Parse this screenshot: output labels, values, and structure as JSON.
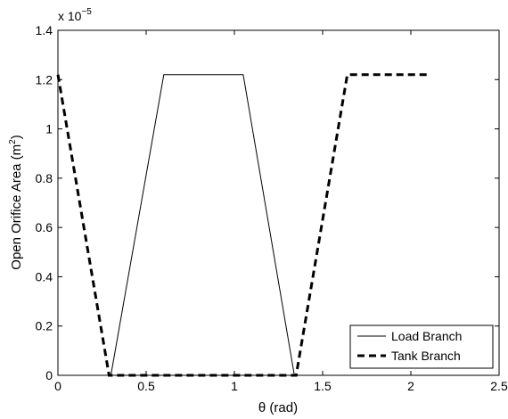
{
  "chart_data": {
    "type": "line",
    "xlabel": "θ (rad)",
    "ylabel": "Open Orifice Area (m",
    "ylabel_sup": "2",
    "ylabel_close": ")",
    "y_multiplier_prefix": "x 10",
    "y_multiplier_exponent": "−5",
    "xlim": [
      0,
      2.5
    ],
    "ylim": [
      0,
      1.4
    ],
    "x_ticks": [
      0,
      0.5,
      1,
      1.5,
      2,
      2.5
    ],
    "x_tick_labels": [
      "0",
      "0.5",
      "1",
      "1.5",
      "2",
      "2.5"
    ],
    "y_ticks": [
      0,
      0.2,
      0.4,
      0.6,
      0.8,
      1,
      1.2,
      1.4
    ],
    "y_tick_labels": [
      "0",
      "0.2",
      "0.4",
      "0.6",
      "0.8",
      "1",
      "1.2",
      "1.4"
    ],
    "grid": false,
    "legend_position": "bottom-right",
    "series": [
      {
        "name": "Load Branch",
        "style": "solid",
        "color": "#000000",
        "x": [
          0.3,
          0.6,
          1.05,
          1.34
        ],
        "y": [
          0,
          1.22,
          1.22,
          0
        ]
      },
      {
        "name": "Tank Branch",
        "style": "dashed",
        "color": "#000000",
        "x": [
          0,
          0.29,
          1.35,
          1.64,
          2.1
        ],
        "y": [
          1.22,
          0,
          0,
          1.22,
          1.22
        ]
      }
    ]
  }
}
